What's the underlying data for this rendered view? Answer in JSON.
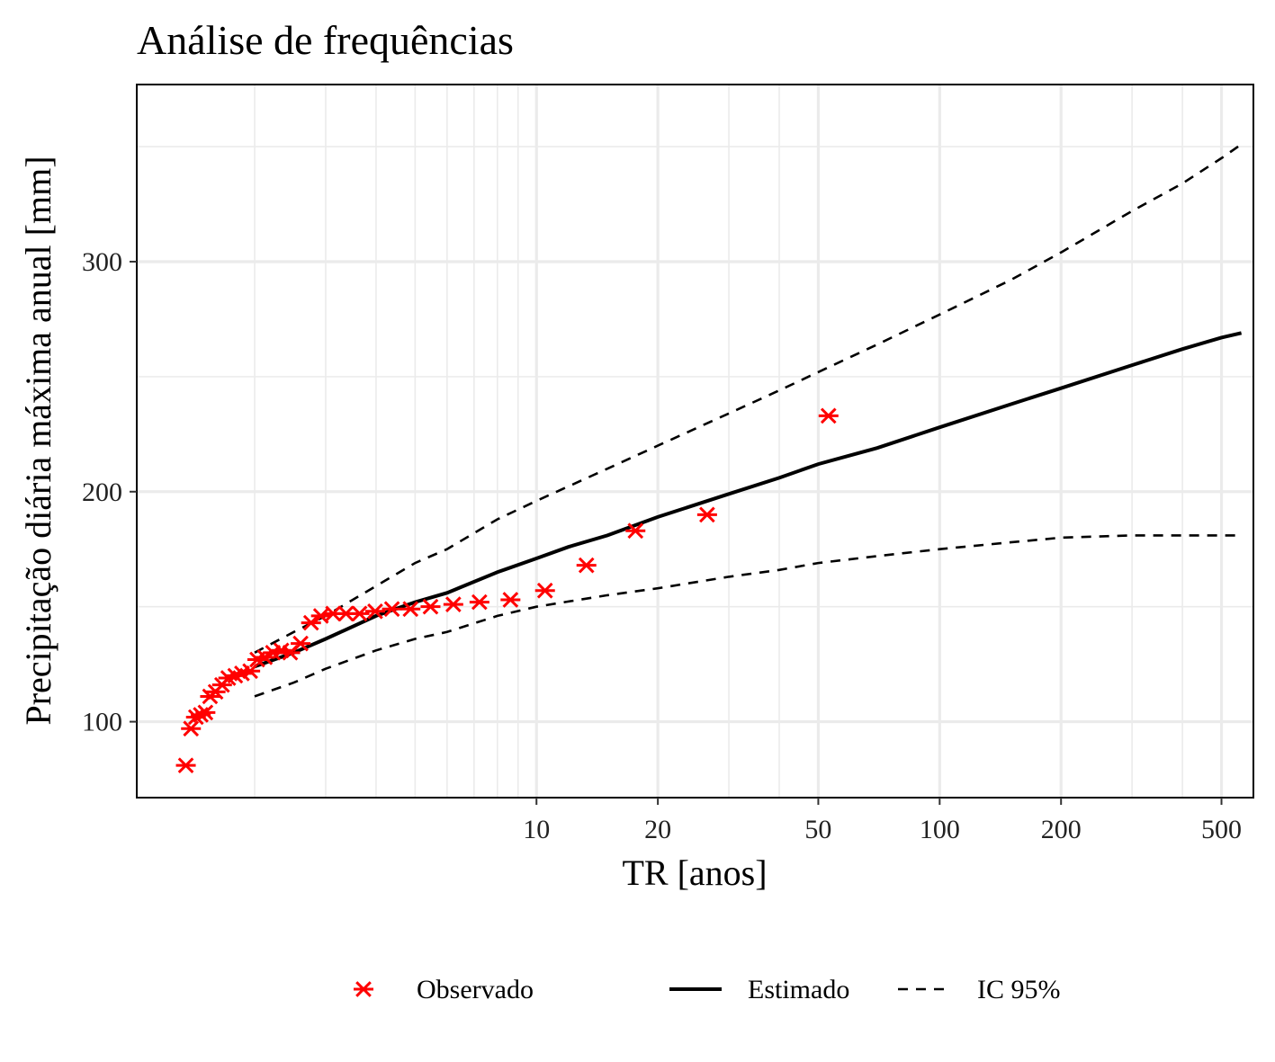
{
  "chart_data": {
    "type": "scatter",
    "title": "Análise de frequências",
    "xlabel": "TR [anos]",
    "ylabel": "Precipitação diária máxima anual [mm]",
    "x_scale": "log",
    "xlim": [
      1.02,
      600
    ],
    "ylim": [
      67,
      377
    ],
    "x_ticks": [
      10,
      20,
      50,
      100,
      200,
      500
    ],
    "x_tick_labels": [
      "10",
      "20",
      "50",
      "100",
      "200",
      "500"
    ],
    "x_minor_grid": [
      2,
      3,
      4,
      5,
      6,
      7,
      8,
      9,
      30,
      40,
      300,
      400
    ],
    "y_ticks": [
      100,
      200,
      300
    ],
    "y_tick_labels": [
      "100",
      "200",
      "300"
    ],
    "y_minor_grid": [
      150,
      250,
      350
    ],
    "grid": true,
    "legend_position": "bottom",
    "colors": {
      "observed": "#ff0000",
      "lines": "#000000",
      "grid": "#ebebeb"
    },
    "series": [
      {
        "name": "Observado",
        "kind": "points",
        "marker": "asterisk",
        "points": [
          [
            1.35,
            81
          ],
          [
            1.39,
            97
          ],
          [
            1.43,
            102
          ],
          [
            1.47,
            103
          ],
          [
            1.51,
            104
          ],
          [
            1.55,
            111
          ],
          [
            1.6,
            113
          ],
          [
            1.66,
            116
          ],
          [
            1.72,
            119
          ],
          [
            1.79,
            120
          ],
          [
            1.86,
            121
          ],
          [
            1.95,
            122
          ],
          [
            2.03,
            127
          ],
          [
            2.12,
            128
          ],
          [
            2.22,
            130
          ],
          [
            2.33,
            131
          ],
          [
            2.45,
            130
          ],
          [
            2.6,
            134
          ],
          [
            2.76,
            143
          ],
          [
            2.92,
            146
          ],
          [
            3.13,
            147
          ],
          [
            3.37,
            147
          ],
          [
            3.64,
            147
          ],
          [
            3.98,
            148
          ],
          [
            4.38,
            149
          ],
          [
            4.87,
            149
          ],
          [
            5.46,
            150
          ],
          [
            6.22,
            151
          ],
          [
            7.22,
            152
          ],
          [
            8.62,
            153
          ],
          [
            10.5,
            157
          ],
          [
            13.3,
            168
          ],
          [
            17.6,
            183
          ],
          [
            26.5,
            190
          ],
          [
            53,
            233
          ]
        ]
      },
      {
        "name": "Estimado",
        "kind": "line",
        "points": [
          [
            2.0,
            124
          ],
          [
            2.5,
            130
          ],
          [
            3,
            136
          ],
          [
            4,
            146
          ],
          [
            5,
            152
          ],
          [
            6,
            156
          ],
          [
            8,
            165
          ],
          [
            10,
            171
          ],
          [
            12,
            176
          ],
          [
            15,
            181
          ],
          [
            20,
            189
          ],
          [
            30,
            199
          ],
          [
            40,
            206
          ],
          [
            50,
            212
          ],
          [
            70,
            219
          ],
          [
            100,
            228
          ],
          [
            150,
            238
          ],
          [
            200,
            245
          ],
          [
            300,
            255
          ],
          [
            400,
            262
          ],
          [
            500,
            267
          ],
          [
            560,
            269
          ]
        ]
      },
      {
        "name": "IC 95%",
        "kind": "line",
        "dash": true,
        "upper": [
          [
            2.0,
            130
          ],
          [
            2.5,
            139
          ],
          [
            3,
            146
          ],
          [
            4,
            159
          ],
          [
            5,
            169
          ],
          [
            6,
            175
          ],
          [
            8,
            188
          ],
          [
            10,
            196
          ],
          [
            15,
            210
          ],
          [
            20,
            220
          ],
          [
            30,
            234
          ],
          [
            40,
            244
          ],
          [
            50,
            252
          ],
          [
            70,
            264
          ],
          [
            100,
            277
          ],
          [
            150,
            292
          ],
          [
            200,
            304
          ],
          [
            300,
            322
          ],
          [
            400,
            334
          ],
          [
            500,
            345
          ],
          [
            560,
            351
          ]
        ],
        "lower": [
          [
            2.0,
            111
          ],
          [
            2.5,
            117
          ],
          [
            3,
            123
          ],
          [
            4,
            131
          ],
          [
            5,
            136
          ],
          [
            6,
            139
          ],
          [
            8,
            146
          ],
          [
            10,
            150
          ],
          [
            15,
            155
          ],
          [
            20,
            158
          ],
          [
            30,
            163
          ],
          [
            40,
            166
          ],
          [
            50,
            169
          ],
          [
            70,
            172
          ],
          [
            100,
            175
          ],
          [
            150,
            178
          ],
          [
            200,
            180
          ],
          [
            300,
            181
          ],
          [
            400,
            181
          ],
          [
            500,
            181
          ],
          [
            560,
            181
          ]
        ]
      }
    ]
  }
}
